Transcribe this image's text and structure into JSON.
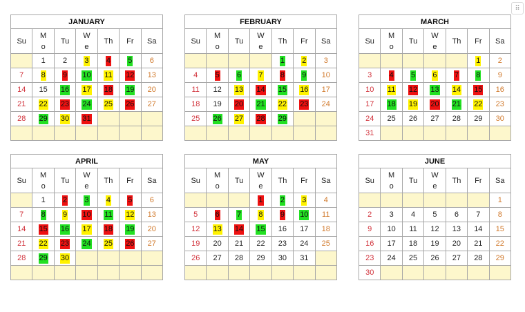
{
  "colors": {
    "yellow": "#fff200",
    "red": "#ee1111",
    "green": "#22e022",
    "empty_fill": "#fdf7cc"
  },
  "weekday_headers": [
    [
      "Su"
    ],
    [
      "M",
      "o"
    ],
    [
      "Tu"
    ],
    [
      "W",
      "e"
    ],
    [
      "Th"
    ],
    [
      "Fr"
    ],
    [
      "Sa"
    ]
  ],
  "handle": {
    "icon": "drag-handle-icon"
  },
  "months": [
    {
      "name": "JANUARY",
      "start": 1,
      "days": 31,
      "marks": {
        "3": "y",
        "4": "r",
        "5": "g",
        "8": "y",
        "9": "r",
        "10": "g",
        "11": "y",
        "12": "r",
        "16": "g",
        "17": "y",
        "18": "r",
        "19": "g",
        "22": "y",
        "23": "r",
        "24": "g",
        "25": "y",
        "26": "r",
        "29": "g",
        "30": "y",
        "31": "r"
      }
    },
    {
      "name": "FEBRUARY",
      "start": 4,
      "days": 29,
      "marks": {
        "1": "g",
        "2": "y",
        "5": "r",
        "6": "g",
        "7": "y",
        "8": "r",
        "9": "g",
        "13": "y",
        "14": "r",
        "15": "g",
        "16": "y",
        "20": "r",
        "21": "g",
        "22": "y",
        "23": "r",
        "26": "g",
        "27": "y",
        "28": "r",
        "29": "g"
      }
    },
    {
      "name": "MARCH",
      "start": 5,
      "days": 31,
      "marks": {
        "1": "y",
        "4": "r",
        "5": "g",
        "6": "y",
        "7": "r",
        "8": "g",
        "11": "y",
        "12": "r",
        "13": "g",
        "14": "y",
        "15": "r",
        "18": "g",
        "19": "y",
        "20": "r",
        "21": "g",
        "22": "y"
      }
    },
    {
      "name": "APRIL",
      "start": 1,
      "days": 30,
      "marks": {
        "2": "r",
        "3": "g",
        "4": "y",
        "5": "r",
        "8": "g",
        "9": "y",
        "10": "r",
        "11": "g",
        "12": "y",
        "15": "r",
        "16": "g",
        "17": "y",
        "18": "r",
        "19": "g",
        "22": "y",
        "23": "r",
        "24": "g",
        "25": "y",
        "26": "r",
        "29": "g",
        "30": "y"
      }
    },
    {
      "name": "MAY",
      "start": 3,
      "days": 31,
      "marks": {
        "1": "r",
        "2": "g",
        "3": "y",
        "6": "r",
        "7": "g",
        "8": "y",
        "9": "r",
        "10": "g",
        "13": "y",
        "14": "r",
        "15": "g"
      }
    },
    {
      "name": "JUNE",
      "start": 6,
      "days": 30,
      "marks": {}
    }
  ]
}
